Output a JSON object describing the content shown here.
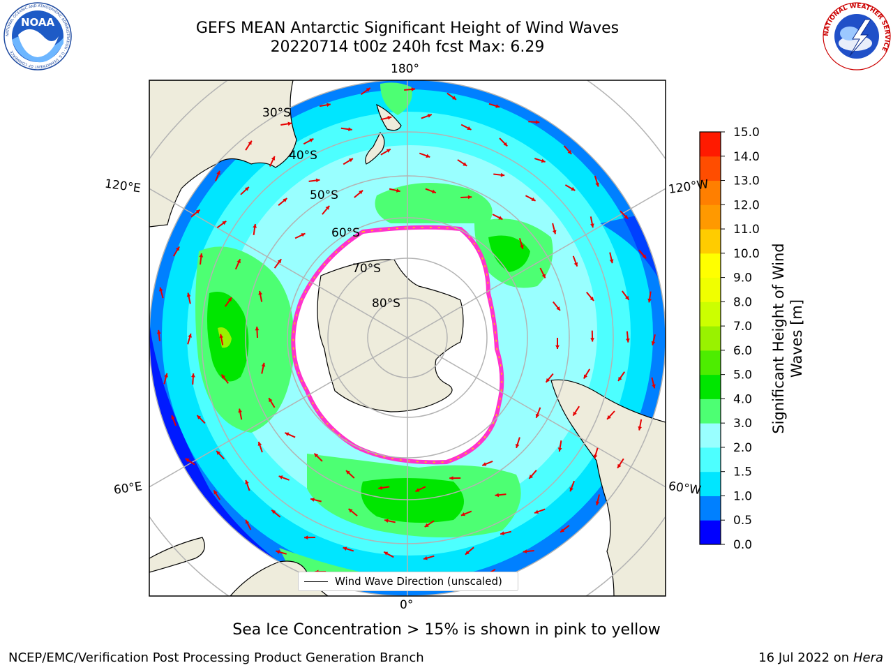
{
  "header": {
    "title_line1": "GEFS MEAN Antarctic Significant Height of Wind Waves",
    "title_line2": "20220714 t00z 240h fcst   Max: 6.29"
  },
  "logos": {
    "left_logo_text": "NOAA",
    "left_logo_ring": "NATIONAL OCEANIC AND ATMOSPHERIC ADMINISTRATION · U.S. DEPARTMENT OF COMMERCE",
    "right_logo_ring": "NATIONAL WEATHER SERVICE"
  },
  "map": {
    "meridian_labels": {
      "top": "180°",
      "bottom": "0°",
      "upper_left": "120°E",
      "upper_right": "120°W",
      "lower_left": "60°E",
      "lower_right": "60°W"
    },
    "latitude_labels": [
      "30°S",
      "40°S",
      "50°S",
      "60°S",
      "70°S",
      "80°S"
    ],
    "legend_text": "Wind Wave Direction (unscaled)",
    "colors": {
      "land": "#eeecdc",
      "ice": "#ffffff",
      "ice_edge": "#ff33cc",
      "arrow": "#e60000",
      "grid": "#b3b3b3"
    }
  },
  "colorbar": {
    "title_line1": "Significant Height of Wind",
    "title_line2": "Waves [m]",
    "ticks": [
      "0.0",
      "0.5",
      "1.0",
      "1.5",
      "2.0",
      "3.0",
      "4.0",
      "5.0",
      "6.0",
      "7.0",
      "8.0",
      "9.0",
      "10.0",
      "11.0",
      "12.0",
      "13.0",
      "14.0",
      "15.0"
    ],
    "colors": [
      "#0000ff",
      "#0080ff",
      "#00e6ff",
      "#4dffff",
      "#99ffff",
      "#4dff73",
      "#00e600",
      "#4ded00",
      "#99f200",
      "#ccff00",
      "#f0ff00",
      "#ffff00",
      "#ffcc00",
      "#ff9900",
      "#ff7f00",
      "#ff4d00",
      "#ff1a00"
    ]
  },
  "footer": {
    "note": "Sea Ice Concentration > 15% is shown in pink to yellow",
    "left": "NCEP/EMC/Verification Post Processing Product Generation Branch",
    "date": "16 Jul 2022 on ",
    "host": "Hera"
  }
}
